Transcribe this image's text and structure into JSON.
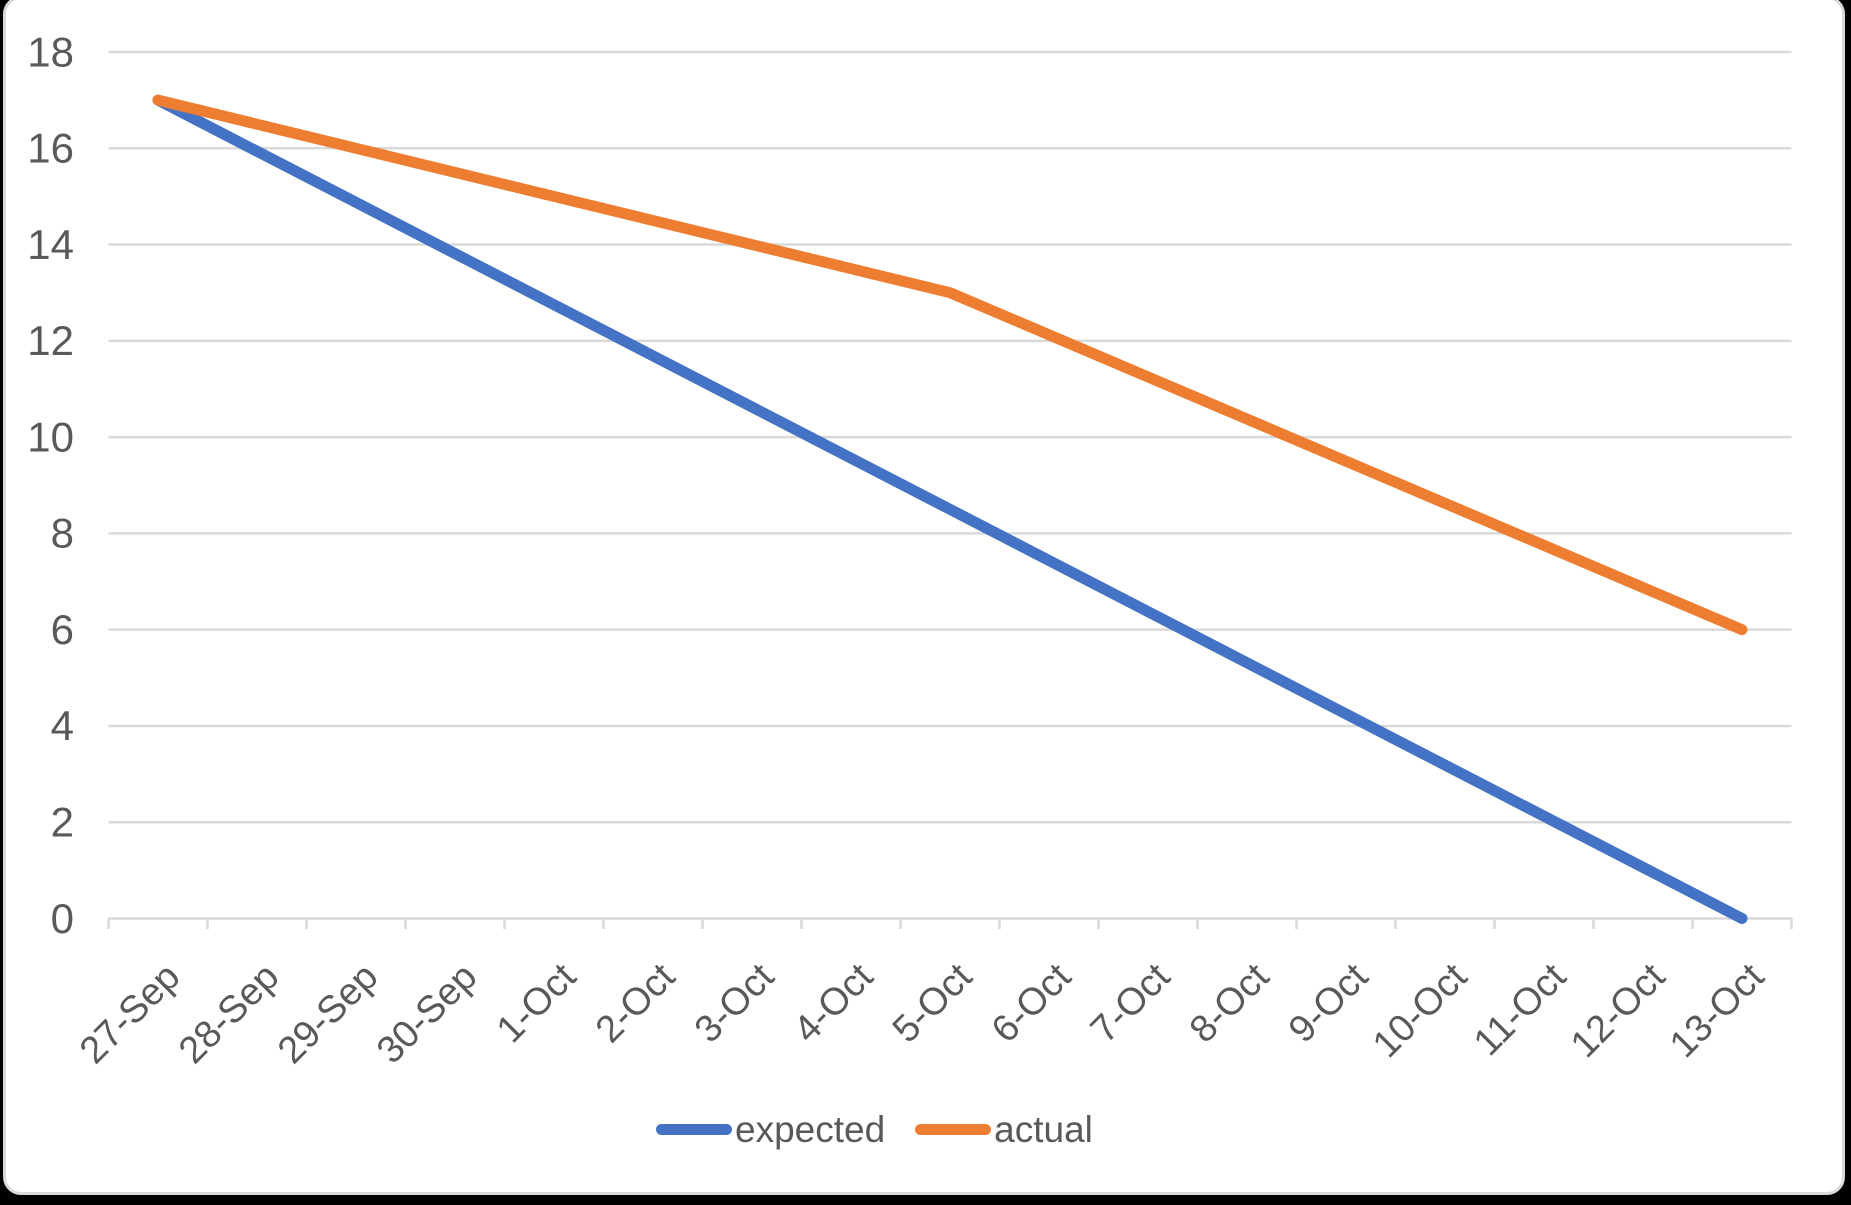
{
  "chart_data": {
    "type": "line",
    "title": "",
    "categories": [
      "27-Sep",
      "28-Sep",
      "29-Sep",
      "30-Sep",
      "1-Oct",
      "2-Oct",
      "3-Oct",
      "4-Oct",
      "5-Oct",
      "6-Oct",
      "7-Oct",
      "8-Oct",
      "9-Oct",
      "10-Oct",
      "11-Oct",
      "12-Oct",
      "13-Oct"
    ],
    "series": [
      {
        "name": "expected",
        "color": "#4472C4",
        "points": [
          {
            "category": "27-Sep",
            "value": 17
          },
          {
            "category": "13-Oct",
            "value": 0
          }
        ]
      },
      {
        "name": "actual",
        "color": "#ED7D31",
        "points": [
          {
            "category": "27-Sep",
            "value": 17
          },
          {
            "category": "5-Oct",
            "value": 13
          },
          {
            "category": "13-Oct",
            "value": 6
          }
        ]
      }
    ],
    "y_axis": {
      "min": 0,
      "max": 18,
      "step": 2,
      "tick_labels": [
        "0",
        "2",
        "4",
        "6",
        "8",
        "10",
        "12",
        "14",
        "16",
        "18"
      ]
    },
    "x_axis": {
      "label_rotation_deg": 45,
      "tick_marks": "between-categories"
    },
    "legend": {
      "position": "bottom",
      "entries": [
        "expected",
        "actual"
      ]
    },
    "grid": {
      "horizontal": true,
      "vertical": false
    },
    "style": {
      "gridline_color": "#D9D9D9",
      "axis_color": "#D9D9D9",
      "label_color": "#595959",
      "plot_background": "#FFFFFF",
      "page_edge_color": "#000000",
      "series_line_width": 11
    }
  }
}
